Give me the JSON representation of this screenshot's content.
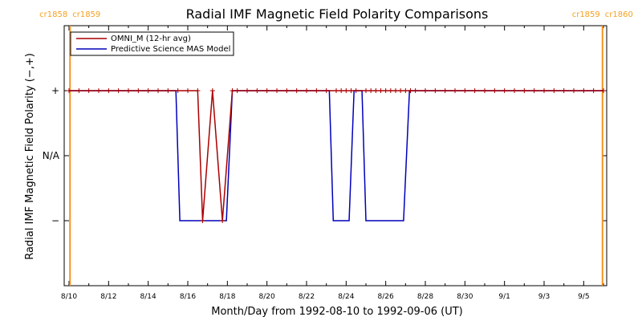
{
  "chart_data": {
    "type": "line",
    "title": "Radial IMF Magnetic Field Polarity Comparisons",
    "xlabel": "Month/Day from 1992-08-10 to 1992-09-06 (UT)",
    "ylabel": "Radial IMF Magnetic Field Polarity (−,+)",
    "x_range_days": [
      0,
      27
    ],
    "x_ticks": [
      {
        "day": 0,
        "label": "8/10"
      },
      {
        "day": 2,
        "label": "8/12"
      },
      {
        "day": 4,
        "label": "8/14"
      },
      {
        "day": 6,
        "label": "8/16"
      },
      {
        "day": 8,
        "label": "8/18"
      },
      {
        "day": 10,
        "label": "8/20"
      },
      {
        "day": 12,
        "label": "8/22"
      },
      {
        "day": 14,
        "label": "8/24"
      },
      {
        "day": 16,
        "label": "8/26"
      },
      {
        "day": 18,
        "label": "8/28"
      },
      {
        "day": 20,
        "label": "8/30"
      },
      {
        "day": 22,
        "label": "9/1"
      },
      {
        "day": 24,
        "label": "9/3"
      },
      {
        "day": 26,
        "label": "9/5"
      }
    ],
    "y_ticks": [
      {
        "value": 1,
        "label": "+"
      },
      {
        "value": 0,
        "label": "N/A"
      },
      {
        "value": -1,
        "label": "−"
      }
    ],
    "ylim": [
      -2,
      2
    ],
    "carrington_markers": [
      {
        "day": 0.05,
        "left_label": "cr1858",
        "right_label": "cr1859"
      },
      {
        "day": 26.95,
        "left_label": "cr1859",
        "right_label": "cr1860"
      }
    ],
    "legend": {
      "placement": "top-left"
    },
    "series": [
      {
        "name": "OMNI_M (12-hr avg)",
        "color": "#aa0000",
        "marker": "plus",
        "points": [
          [
            0.0,
            1
          ],
          [
            0.5,
            1
          ],
          [
            1.0,
            1
          ],
          [
            1.5,
            1
          ],
          [
            2.0,
            1
          ],
          [
            2.5,
            1
          ],
          [
            3.0,
            1
          ],
          [
            3.5,
            1
          ],
          [
            4.0,
            1
          ],
          [
            4.5,
            1
          ],
          [
            5.0,
            1
          ],
          [
            5.5,
            1
          ],
          [
            6.0,
            1
          ],
          [
            6.5,
            1
          ],
          [
            6.75,
            -1
          ],
          [
            7.25,
            1
          ],
          [
            7.75,
            -1
          ],
          [
            8.25,
            1
          ],
          [
            8.5,
            1
          ],
          [
            9.0,
            1
          ],
          [
            9.5,
            1
          ],
          [
            10.0,
            1
          ],
          [
            10.5,
            1
          ],
          [
            11.0,
            1
          ],
          [
            11.5,
            1
          ],
          [
            12.0,
            1
          ],
          [
            12.5,
            1
          ],
          [
            13.0,
            1
          ],
          [
            13.5,
            1
          ],
          [
            14.0,
            1
          ],
          [
            14.5,
            1
          ],
          [
            15.0,
            1
          ],
          [
            15.5,
            1
          ],
          [
            16.0,
            1
          ],
          [
            16.5,
            1
          ],
          [
            17.0,
            1
          ],
          [
            17.5,
            1
          ],
          [
            18.0,
            1
          ],
          [
            18.5,
            1
          ],
          [
            19.0,
            1
          ],
          [
            19.5,
            1
          ],
          [
            20.0,
            1
          ],
          [
            20.5,
            1
          ],
          [
            21.0,
            1
          ],
          [
            21.5,
            1
          ],
          [
            22.0,
            1
          ],
          [
            22.5,
            1
          ],
          [
            23.0,
            1
          ],
          [
            23.5,
            1
          ],
          [
            24.0,
            1
          ],
          [
            24.5,
            1
          ],
          [
            25.0,
            1
          ],
          [
            25.5,
            1
          ],
          [
            26.0,
            1
          ],
          [
            26.5,
            1
          ],
          [
            27.0,
            1
          ]
        ],
        "hidden_markers": [
          [
            13.75,
            1
          ],
          [
            14.25,
            1
          ],
          [
            15.25,
            1
          ],
          [
            15.75,
            1
          ],
          [
            16.25,
            1
          ],
          [
            16.75,
            1
          ],
          [
            17.25,
            1
          ]
        ]
      },
      {
        "name": "Predictive Science MAS Model",
        "color": "#0000bb",
        "marker": "none",
        "points": [
          [
            0.0,
            1
          ],
          [
            5.4,
            1
          ],
          [
            5.6,
            -1
          ],
          [
            7.95,
            -1
          ],
          [
            8.25,
            1
          ],
          [
            13.15,
            1
          ],
          [
            13.35,
            -1
          ],
          [
            14.15,
            -1
          ],
          [
            14.4,
            1
          ],
          [
            14.8,
            1
          ],
          [
            15.0,
            -1
          ],
          [
            16.9,
            -1
          ],
          [
            17.2,
            1
          ],
          [
            27.0,
            1
          ]
        ]
      }
    ]
  }
}
